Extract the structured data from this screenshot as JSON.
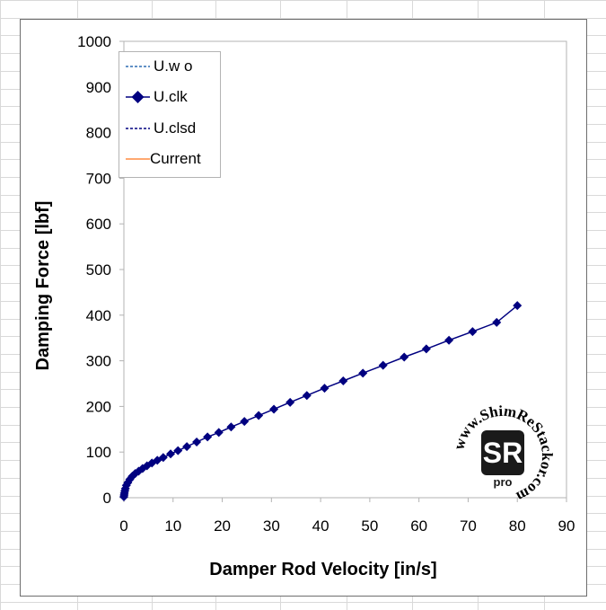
{
  "colors": {
    "series_uwo": "#2e6db4",
    "series_uclk": "#000080",
    "series_uclsd": "#000080",
    "series_current": "#ff8c42",
    "plot_border": "#b3b3b3",
    "gridline": "#b3b3b3"
  },
  "legend": {
    "items": [
      {
        "label": "U.w o",
        "style": "dashed",
        "marker": "none"
      },
      {
        "label": "U.clk",
        "style": "solid",
        "marker": "diamond"
      },
      {
        "label": "U.clsd",
        "style": "dashed",
        "marker": "none"
      },
      {
        "label": "Current",
        "style": "solid",
        "marker": "none"
      }
    ]
  },
  "watermark": {
    "text": "www.ShimReStackor.com",
    "logo_letters": "SR",
    "logo_sub": "pro"
  },
  "chart_data": {
    "type": "line",
    "title": "",
    "xlabel": "Damper Rod Velocity [in/s]",
    "ylabel": "Damping Force [lbf]",
    "xlim": [
      0,
      90
    ],
    "ylim": [
      0,
      1000
    ],
    "x_ticks": [
      "0",
      "10",
      "20",
      "30",
      "40",
      "50",
      "60",
      "70",
      "80",
      "90"
    ],
    "y_ticks": [
      "0",
      "100",
      "200",
      "300",
      "400",
      "500",
      "600",
      "700",
      "800",
      "900",
      "1000"
    ],
    "grid": false,
    "legend_position": "top-left",
    "series": [
      {
        "name": "U.clk",
        "marker": "diamond",
        "x": [
          0,
          0.05,
          0.1,
          0.2,
          0.3,
          0.5,
          0.8,
          1.2,
          1.7,
          2.3,
          3.0,
          3.8,
          4.7,
          5.7,
          6.8,
          8.0,
          9.5,
          11.0,
          12.8,
          14.8,
          17.0,
          19.3,
          21.8,
          24.5,
          27.4,
          30.5,
          33.8,
          37.2,
          40.8,
          44.6,
          48.6,
          52.7,
          57.0,
          61.5,
          66.1,
          70.9,
          75.8,
          80.0
        ],
        "y": [
          2,
          6,
          10,
          15,
          20,
          27,
          33,
          40,
          47,
          53,
          58,
          64,
          70,
          76,
          82,
          88,
          96,
          103,
          112,
          122,
          133,
          143,
          155,
          167,
          180,
          194,
          209,
          224,
          240,
          256,
          273,
          290,
          308,
          326,
          345,
          364,
          384,
          421
        ]
      }
    ]
  }
}
